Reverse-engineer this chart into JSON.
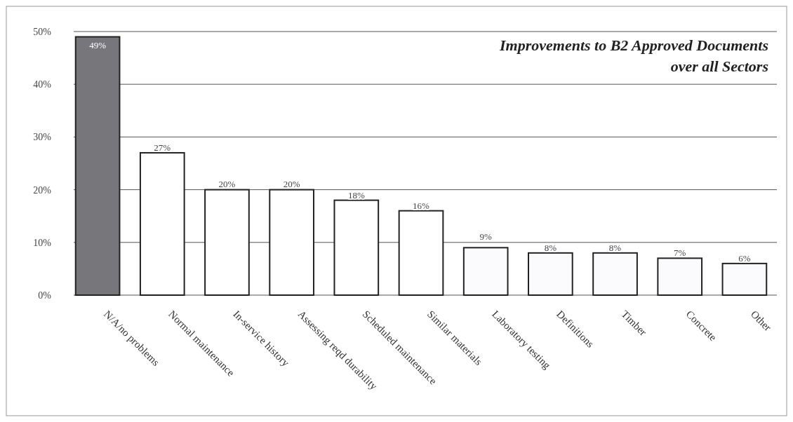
{
  "chart_data": {
    "type": "bar",
    "title": "Improvements to B2 Approved Documents over all Sectors",
    "categories": [
      "N/A/no problems",
      "Normal maintenance",
      "In-service history",
      "Assessing reqd durability",
      "Scheduled maintenance",
      "Similar materials",
      "Laboratory testing",
      "Definitions",
      "Timber",
      "Concrete",
      "Other"
    ],
    "values": [
      49,
      27,
      20,
      20,
      18,
      16,
      9,
      8,
      8,
      7,
      6
    ],
    "colors": [
      "#77767b",
      "#ffffff",
      "#ffffff",
      "#ffffff",
      "#ffffff",
      "#ffffff",
      "#fbfbfd",
      "#fbfbfd",
      "#fbfbfd",
      "#fbfbfd",
      "#fbfbfd"
    ],
    "ylim": [
      0,
      50
    ],
    "yticks": [
      {
        "value": 0,
        "label": "0%"
      },
      {
        "value": 10,
        "label": "10%"
      },
      {
        "value": 20,
        "label": "20%"
      },
      {
        "value": 30,
        "label": "30%"
      },
      {
        "value": 40,
        "label": "40%"
      },
      {
        "value": 50,
        "label": "50%"
      }
    ],
    "grid": "y",
    "value_labels": [
      "49%",
      "27%",
      "20%",
      "20%",
      "18%",
      "16%",
      "9%",
      "8%",
      "8%",
      "7%",
      "6%"
    ]
  }
}
